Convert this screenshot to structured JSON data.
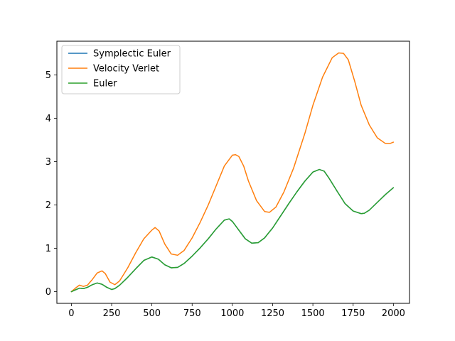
{
  "chart_data": {
    "type": "line",
    "title": "",
    "xlabel": "",
    "ylabel": "",
    "xlim": [
      -90,
      2100
    ],
    "ylim": [
      -0.27,
      5.78
    ],
    "xticks": [
      "0",
      "250",
      "500",
      "750",
      "1000",
      "1250",
      "1500",
      "1750",
      "2000"
    ],
    "yticks": [
      "0",
      "1",
      "2",
      "3",
      "4",
      "5"
    ],
    "grid": false,
    "legend_position": "upper left",
    "series": [
      {
        "name": "Symplectic Euler",
        "color": "#1f77b4",
        "x": [
          0,
          25,
          50,
          75,
          100,
          130,
          160,
          190,
          220,
          250,
          270,
          300,
          350,
          400,
          450,
          500,
          540,
          580,
          620,
          660,
          700,
          750,
          800,
          850,
          900,
          950,
          980,
          1000,
          1040,
          1080,
          1120,
          1160,
          1200,
          1250,
          1300,
          1350,
          1400,
          1450,
          1500,
          1540,
          1570,
          1600,
          1650,
          1700,
          1750,
          1800,
          1820,
          1850,
          1900,
          1950,
          2000
        ],
        "y": [
          0.0,
          0.04,
          0.08,
          0.07,
          0.1,
          0.16,
          0.2,
          0.17,
          0.1,
          0.05,
          0.07,
          0.15,
          0.33,
          0.53,
          0.72,
          0.8,
          0.75,
          0.62,
          0.55,
          0.56,
          0.65,
          0.82,
          1.01,
          1.22,
          1.45,
          1.65,
          1.68,
          1.62,
          1.42,
          1.22,
          1.12,
          1.13,
          1.24,
          1.47,
          1.75,
          2.03,
          2.3,
          2.55,
          2.76,
          2.82,
          2.78,
          2.62,
          2.32,
          2.03,
          1.86,
          1.8,
          1.81,
          1.88,
          2.06,
          2.24,
          2.4
        ]
      },
      {
        "name": "Velocity Verlet",
        "color": "#ff7f0e",
        "x": [
          0,
          25,
          50,
          75,
          100,
          130,
          160,
          190,
          210,
          240,
          270,
          300,
          350,
          400,
          450,
          500,
          520,
          545,
          580,
          620,
          660,
          700,
          750,
          800,
          850,
          900,
          950,
          1000,
          1020,
          1040,
          1070,
          1100,
          1150,
          1200,
          1230,
          1270,
          1320,
          1380,
          1450,
          1500,
          1560,
          1620,
          1660,
          1690,
          1720,
          1760,
          1800,
          1850,
          1900,
          1950,
          1980,
          2000
        ],
        "y": [
          0.0,
          0.08,
          0.15,
          0.12,
          0.15,
          0.28,
          0.43,
          0.48,
          0.42,
          0.22,
          0.16,
          0.25,
          0.55,
          0.9,
          1.22,
          1.42,
          1.48,
          1.4,
          1.1,
          0.87,
          0.84,
          0.95,
          1.24,
          1.6,
          2.0,
          2.45,
          2.9,
          3.15,
          3.16,
          3.12,
          2.9,
          2.55,
          2.1,
          1.85,
          1.83,
          1.95,
          2.3,
          2.85,
          3.65,
          4.3,
          4.95,
          5.4,
          5.51,
          5.5,
          5.35,
          4.85,
          4.3,
          3.85,
          3.55,
          3.42,
          3.42,
          3.45
        ]
      },
      {
        "name": "Euler",
        "color": "#2ca02c",
        "x": [
          0,
          25,
          50,
          75,
          100,
          130,
          160,
          190,
          220,
          250,
          270,
          300,
          350,
          400,
          450,
          500,
          540,
          580,
          620,
          660,
          700,
          750,
          800,
          850,
          900,
          950,
          980,
          1000,
          1040,
          1080,
          1120,
          1160,
          1200,
          1250,
          1300,
          1350,
          1400,
          1450,
          1500,
          1540,
          1570,
          1600,
          1650,
          1700,
          1750,
          1800,
          1820,
          1850,
          1900,
          1950,
          2000
        ],
        "y": [
          0.0,
          0.04,
          0.08,
          0.07,
          0.1,
          0.16,
          0.2,
          0.17,
          0.1,
          0.05,
          0.07,
          0.15,
          0.33,
          0.53,
          0.72,
          0.8,
          0.75,
          0.62,
          0.55,
          0.56,
          0.65,
          0.82,
          1.01,
          1.22,
          1.45,
          1.65,
          1.68,
          1.62,
          1.42,
          1.22,
          1.12,
          1.13,
          1.24,
          1.47,
          1.75,
          2.03,
          2.3,
          2.55,
          2.76,
          2.82,
          2.78,
          2.62,
          2.32,
          2.03,
          1.86,
          1.8,
          1.81,
          1.88,
          2.06,
          2.24,
          2.4
        ]
      }
    ]
  }
}
